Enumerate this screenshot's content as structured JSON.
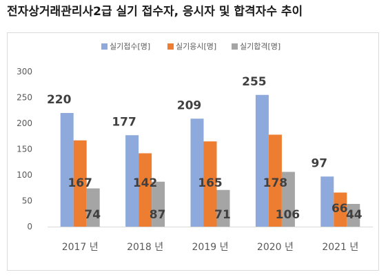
{
  "title": "전자상거래관리사2급 실기 접수자, 응시자 및 합격자수 추이",
  "chart_data": {
    "type": "bar",
    "categories": [
      "2017 년",
      "2018 년",
      "2019 년",
      "2020 년",
      "2021 년"
    ],
    "series": [
      {
        "name": "실기접수[명]",
        "color": "#8EA9DB",
        "values": [
          220,
          177,
          209,
          255,
          97
        ]
      },
      {
        "name": "실기응시[명]",
        "color": "#ED7D31",
        "values": [
          167,
          142,
          165,
          178,
          66
        ]
      },
      {
        "name": "실기합격[명]",
        "color": "#A5A5A5",
        "values": [
          74,
          87,
          71,
          106,
          44
        ]
      }
    ],
    "ylim": [
      0,
      300
    ],
    "yticks": [
      0,
      50,
      100,
      150,
      200,
      250,
      300
    ],
    "grid": false,
    "legend": "top-center",
    "data_labels": true
  }
}
